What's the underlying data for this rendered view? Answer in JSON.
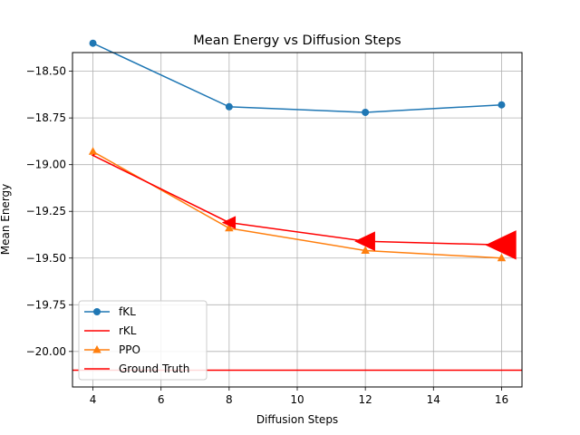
{
  "chart_data": {
    "type": "line",
    "title": "Mean Energy vs Diffusion Steps",
    "xlabel": "Diffusion Steps",
    "ylabel": "Mean Energy",
    "xlim": [
      3.4,
      16.6
    ],
    "ylim": [
      -20.19,
      -18.4
    ],
    "xticks": [
      4,
      6,
      8,
      10,
      12,
      14,
      16
    ],
    "xtick_labels": [
      "4",
      "6",
      "8",
      "10",
      "12",
      "14",
      "16"
    ],
    "yticks": [
      -18.5,
      -18.75,
      -19.0,
      -19.25,
      -19.5,
      -19.75,
      -20.0
    ],
    "ytick_labels": [
      "−18.50",
      "−18.75",
      "−19.00",
      "−19.25",
      "−19.50",
      "−19.75",
      "−20.00"
    ],
    "grid": true,
    "legend_position": "bottom-left",
    "x": [
      4,
      8,
      12,
      16
    ],
    "series": [
      {
        "name": "fKL",
        "color": "#1f77b4",
        "marker": "circle",
        "values": [
          -18.35,
          -18.69,
          -18.72,
          -18.68
        ]
      },
      {
        "name": "rKL",
        "color": "#ff0000",
        "marker": "left-triangle",
        "marker_size": [
          2,
          8,
          12,
          18
        ],
        "values": [
          -18.95,
          -19.31,
          -19.41,
          -19.43
        ]
      },
      {
        "name": "PPO",
        "color": "#ff7f0e",
        "marker": "triangle",
        "values": [
          -18.93,
          -19.34,
          -19.46,
          -19.5
        ]
      }
    ],
    "reference_line": {
      "name": "Ground Truth",
      "color": "#ff0000",
      "value": -20.1
    }
  }
}
